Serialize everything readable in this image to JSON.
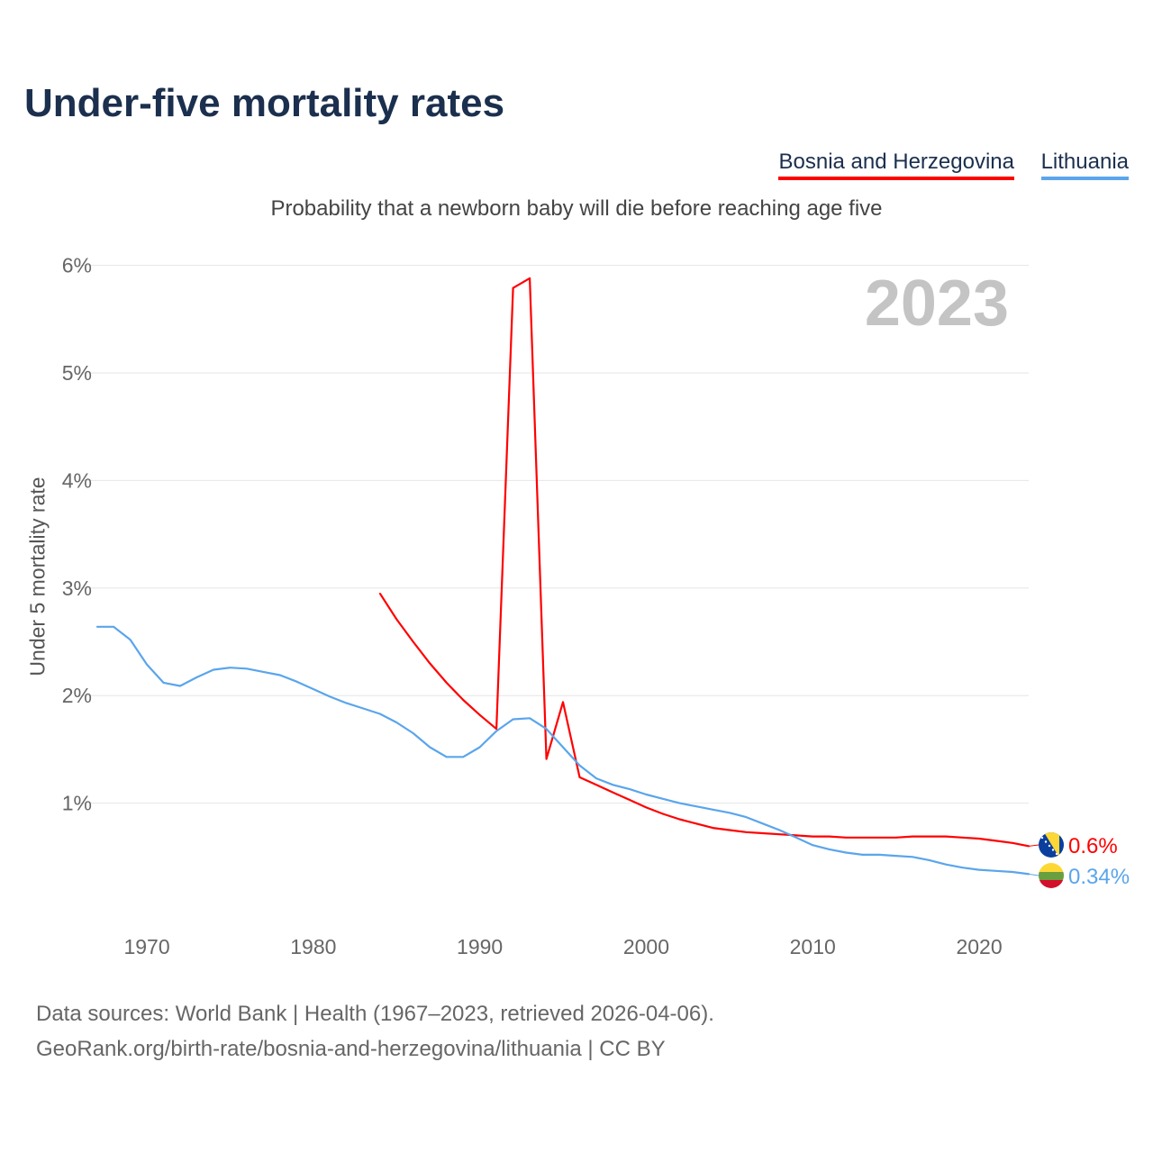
{
  "chart_data": {
    "type": "line",
    "title": "Under-five mortality rates",
    "subtitle": "Probability that a newborn baby will die before reaching age five",
    "ylabel": "Under 5 mortality rate",
    "year_label": "2023",
    "xlim": [
      1967,
      2023
    ],
    "ylim": [
      0,
      6
    ],
    "yticks": [
      {
        "v": 1,
        "label": "1%"
      },
      {
        "v": 2,
        "label": "2%"
      },
      {
        "v": 3,
        "label": "3%"
      },
      {
        "v": 4,
        "label": "4%"
      },
      {
        "v": 5,
        "label": "5%"
      },
      {
        "v": 6,
        "label": "6%"
      }
    ],
    "xticks": [
      {
        "v": 1970,
        "label": "1970"
      },
      {
        "v": 1980,
        "label": "1980"
      },
      {
        "v": 1990,
        "label": "1990"
      },
      {
        "v": 2000,
        "label": "2000"
      },
      {
        "v": 2010,
        "label": "2010"
      },
      {
        "v": 2020,
        "label": "2020"
      }
    ],
    "grid": true,
    "legend_placement": "top-right",
    "series": [
      {
        "name": "Bosnia and Herzegovina",
        "color": "#ff0000",
        "end_label": "0.6%",
        "flag": "bosnia-flag",
        "x": [
          1984,
          1985,
          1986,
          1987,
          1988,
          1989,
          1990,
          1991,
          1992,
          1993,
          1994,
          1995,
          1996,
          1997,
          1998,
          1999,
          2000,
          2001,
          2002,
          2003,
          2004,
          2005,
          2006,
          2007,
          2008,
          2009,
          2010,
          2011,
          2012,
          2013,
          2014,
          2015,
          2016,
          2017,
          2018,
          2019,
          2020,
          2021,
          2022,
          2023
        ],
        "values": [
          2.95,
          2.71,
          2.5,
          2.3,
          2.12,
          1.96,
          1.82,
          1.69,
          5.79,
          5.88,
          1.41,
          1.94,
          1.24,
          1.17,
          1.1,
          1.03,
          0.96,
          0.9,
          0.85,
          0.81,
          0.77,
          0.75,
          0.73,
          0.72,
          0.71,
          0.7,
          0.69,
          0.69,
          0.68,
          0.68,
          0.68,
          0.68,
          0.69,
          0.69,
          0.69,
          0.68,
          0.67,
          0.65,
          0.63,
          0.6
        ]
      },
      {
        "name": "Lithuania",
        "color": "#5aa5ec",
        "end_label": "0.34%",
        "flag": "lithuania-flag",
        "x": [
          1967,
          1968,
          1969,
          1970,
          1971,
          1972,
          1973,
          1974,
          1975,
          1976,
          1977,
          1978,
          1979,
          1980,
          1981,
          1982,
          1983,
          1984,
          1985,
          1986,
          1987,
          1988,
          1989,
          1990,
          1991,
          1992,
          1993,
          1994,
          1995,
          1996,
          1997,
          1998,
          1999,
          2000,
          2001,
          2002,
          2003,
          2004,
          2005,
          2006,
          2007,
          2008,
          2009,
          2010,
          2011,
          2012,
          2013,
          2014,
          2015,
          2016,
          2017,
          2018,
          2019,
          2020,
          2021,
          2022,
          2023
        ],
        "values": [
          2.64,
          2.64,
          2.52,
          2.29,
          2.12,
          2.09,
          2.17,
          2.24,
          2.26,
          2.25,
          2.22,
          2.19,
          2.13,
          2.06,
          1.99,
          1.93,
          1.88,
          1.83,
          1.75,
          1.65,
          1.52,
          1.43,
          1.43,
          1.52,
          1.67,
          1.78,
          1.79,
          1.69,
          1.52,
          1.35,
          1.23,
          1.17,
          1.13,
          1.08,
          1.04,
          1.0,
          0.97,
          0.94,
          0.91,
          0.87,
          0.81,
          0.75,
          0.68,
          0.61,
          0.57,
          0.54,
          0.52,
          0.52,
          0.51,
          0.5,
          0.47,
          0.43,
          0.4,
          0.38,
          0.37,
          0.36,
          0.34
        ]
      }
    ]
  },
  "source": {
    "line1": "Data sources: World Bank | Health (1967–2023, retrieved 2026-04-06).",
    "line2": "GeoRank.org/birth-rate/bosnia-and-herzegovina/lithuania | CC BY"
  }
}
